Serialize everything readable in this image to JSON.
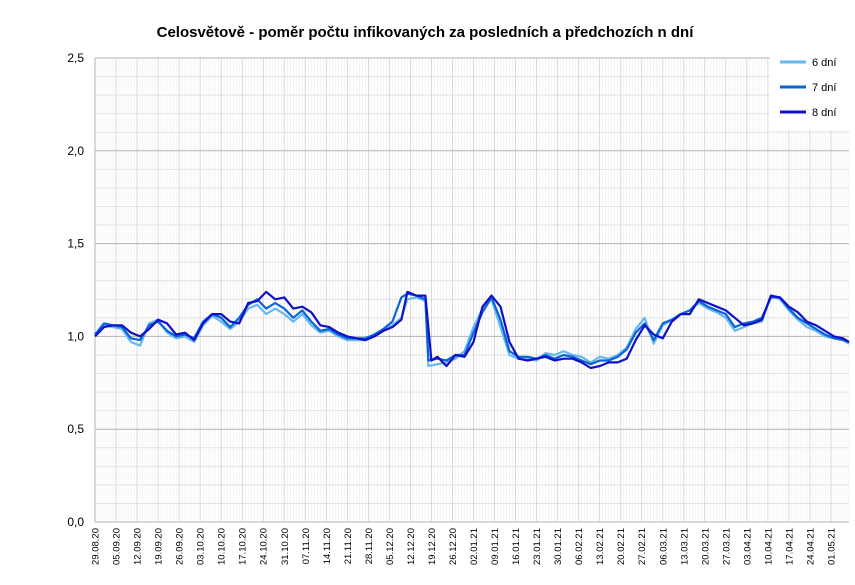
{
  "chart_data": {
    "type": "line",
    "title": "Celosvětově - poměr počtu infikovaných za posledních a předchozích n dní",
    "ylim": [
      0,
      2.5
    ],
    "yticks": [
      0,
      0.5,
      1.0,
      1.5,
      2.0,
      2.5
    ],
    "ytick_labels": [
      "0,0",
      "0,5",
      "1,0",
      "1,5",
      "2,0",
      "2,5"
    ],
    "xlim": [
      "2020-08-29",
      "2021-05-07"
    ],
    "x_tick_labels": [
      "29.08.20",
      "05.09.20",
      "12.09.20",
      "19.09.20",
      "26.09.20",
      "03.10.20",
      "10.10.20",
      "17.10.20",
      "24.10.20",
      "31.10.20",
      "07.11.20",
      "14.11.20",
      "21.11.20",
      "28.11.20",
      "05.12.20",
      "12.12.20",
      "19.12.20",
      "26.12.20",
      "02.01.21",
      "09.01.21",
      "16.01.21",
      "23.01.21",
      "30.01.21",
      "06.02.21",
      "13.02.21",
      "20.02.21",
      "27.02.21",
      "06.03.21",
      "13.03.21",
      "20.03.21",
      "27.03.21",
      "03.04.21",
      "10.04.21",
      "17.04.21",
      "24.04.21",
      "01.05.21"
    ],
    "grid": "major and minor",
    "legend_position": "top-right",
    "series": [
      {
        "name": "6 dní",
        "color": "#66b8ee",
        "x": [
          "2020-08-29",
          "2020-09-01",
          "2020-09-04",
          "2020-09-07",
          "2020-09-10",
          "2020-09-13",
          "2020-09-16",
          "2020-09-19",
          "2020-09-22",
          "2020-09-25",
          "2020-09-28",
          "2020-10-01",
          "2020-10-04",
          "2020-10-07",
          "2020-10-10",
          "2020-10-13",
          "2020-10-16",
          "2020-10-19",
          "2020-10-22",
          "2020-10-25",
          "2020-10-28",
          "2020-10-31",
          "2020-11-03",
          "2020-11-06",
          "2020-11-09",
          "2020-11-12",
          "2020-11-15",
          "2020-11-18",
          "2020-11-21",
          "2020-11-24",
          "2020-11-27",
          "2020-11-30",
          "2020-12-03",
          "2020-12-06",
          "2020-12-09",
          "2020-12-11",
          "2020-12-14",
          "2020-12-17",
          "2020-12-18",
          "2020-12-21",
          "2020-12-24",
          "2020-12-27",
          "2020-12-30",
          "2021-01-02",
          "2021-01-05",
          "2021-01-08",
          "2021-01-11",
          "2021-01-14",
          "2021-01-17",
          "2021-01-20",
          "2021-01-23",
          "2021-01-26",
          "2021-01-29",
          "2021-02-01",
          "2021-02-04",
          "2021-02-07",
          "2021-02-10",
          "2021-02-13",
          "2021-02-16",
          "2021-02-19",
          "2021-02-22",
          "2021-02-25",
          "2021-02-28",
          "2021-03-03",
          "2021-03-06",
          "2021-03-09",
          "2021-03-12",
          "2021-03-15",
          "2021-03-18",
          "2021-03-21",
          "2021-03-24",
          "2021-03-27",
          "2021-03-30",
          "2021-04-02",
          "2021-04-05",
          "2021-04-08",
          "2021-04-11",
          "2021-04-14",
          "2021-04-17",
          "2021-04-20",
          "2021-04-23",
          "2021-04-26",
          "2021-04-29",
          "2021-05-02",
          "2021-05-05",
          "2021-05-07"
        ],
        "values": [
          1.0,
          1.06,
          1.05,
          1.04,
          0.97,
          0.95,
          1.07,
          1.09,
          1.02,
          0.99,
          1.0,
          0.97,
          1.06,
          1.11,
          1.08,
          1.04,
          1.08,
          1.15,
          1.17,
          1.12,
          1.15,
          1.12,
          1.08,
          1.12,
          1.06,
          1.02,
          1.03,
          1.0,
          0.98,
          0.98,
          0.98,
          1.0,
          1.03,
          1.06,
          1.1,
          1.2,
          1.21,
          1.19,
          0.84,
          0.85,
          0.86,
          0.88,
          0.92,
          1.05,
          1.15,
          1.2,
          1.05,
          0.9,
          0.88,
          0.88,
          0.87,
          0.91,
          0.9,
          0.92,
          0.9,
          0.89,
          0.86,
          0.89,
          0.88,
          0.9,
          0.94,
          1.04,
          1.1,
          0.96,
          1.06,
          1.09,
          1.12,
          1.14,
          1.18,
          1.15,
          1.13,
          1.1,
          1.03,
          1.05,
          1.07,
          1.08,
          1.22,
          1.2,
          1.14,
          1.09,
          1.05,
          1.03,
          1.0,
          0.99,
          0.98,
          0.96
        ]
      },
      {
        "name": "7 dní",
        "color": "#0a64d8",
        "x": [
          "2020-08-29",
          "2020-09-01",
          "2020-09-04",
          "2020-09-07",
          "2020-09-10",
          "2020-09-13",
          "2020-09-16",
          "2020-09-19",
          "2020-09-22",
          "2020-09-25",
          "2020-09-28",
          "2020-10-01",
          "2020-10-04",
          "2020-10-07",
          "2020-10-10",
          "2020-10-13",
          "2020-10-16",
          "2020-10-19",
          "2020-10-22",
          "2020-10-25",
          "2020-10-28",
          "2020-10-31",
          "2020-11-03",
          "2020-11-06",
          "2020-11-09",
          "2020-11-12",
          "2020-11-15",
          "2020-11-18",
          "2020-11-21",
          "2020-11-24",
          "2020-11-27",
          "2020-11-30",
          "2020-12-03",
          "2020-12-06",
          "2020-12-09",
          "2020-12-11",
          "2020-12-14",
          "2020-12-17",
          "2020-12-18",
          "2020-12-21",
          "2020-12-24",
          "2020-12-27",
          "2020-12-30",
          "2021-01-02",
          "2021-01-05",
          "2021-01-08",
          "2021-01-11",
          "2021-01-14",
          "2021-01-17",
          "2021-01-20",
          "2021-01-23",
          "2021-01-26",
          "2021-01-29",
          "2021-02-01",
          "2021-02-04",
          "2021-02-07",
          "2021-02-10",
          "2021-02-13",
          "2021-02-16",
          "2021-02-19",
          "2021-02-22",
          "2021-02-25",
          "2021-02-28",
          "2021-03-03",
          "2021-03-06",
          "2021-03-09",
          "2021-03-12",
          "2021-03-15",
          "2021-03-18",
          "2021-03-21",
          "2021-03-24",
          "2021-03-27",
          "2021-03-30",
          "2021-04-02",
          "2021-04-05",
          "2021-04-08",
          "2021-04-11",
          "2021-04-14",
          "2021-04-17",
          "2021-04-20",
          "2021-04-23",
          "2021-04-26",
          "2021-04-29",
          "2021-05-02",
          "2021-05-05",
          "2021-05-07"
        ],
        "values": [
          1.01,
          1.07,
          1.06,
          1.05,
          0.99,
          0.98,
          1.06,
          1.08,
          1.03,
          1.0,
          1.01,
          0.99,
          1.08,
          1.12,
          1.1,
          1.05,
          1.1,
          1.17,
          1.2,
          1.15,
          1.18,
          1.15,
          1.1,
          1.14,
          1.08,
          1.03,
          1.04,
          1.01,
          0.99,
          0.99,
          0.99,
          1.01,
          1.04,
          1.08,
          1.21,
          1.23,
          1.22,
          1.2,
          0.87,
          0.88,
          0.87,
          0.9,
          0.9,
          1.02,
          1.13,
          1.21,
          1.09,
          0.92,
          0.89,
          0.89,
          0.88,
          0.9,
          0.88,
          0.9,
          0.89,
          0.87,
          0.85,
          0.87,
          0.87,
          0.89,
          0.93,
          1.02,
          1.07,
          0.98,
          1.07,
          1.09,
          1.12,
          1.14,
          1.19,
          1.16,
          1.14,
          1.12,
          1.05,
          1.07,
          1.08,
          1.1,
          1.21,
          1.21,
          1.15,
          1.1,
          1.07,
          1.04,
          1.01,
          0.99,
          0.98,
          0.97
        ]
      },
      {
        "name": "8 dní",
        "color": "#1010c8",
        "x": [
          "2020-08-29",
          "2020-09-01",
          "2020-09-04",
          "2020-09-07",
          "2020-09-10",
          "2020-09-13",
          "2020-09-16",
          "2020-09-19",
          "2020-09-22",
          "2020-09-25",
          "2020-09-28",
          "2020-10-01",
          "2020-10-04",
          "2020-10-07",
          "2020-10-10",
          "2020-10-13",
          "2020-10-16",
          "2020-10-19",
          "2020-10-22",
          "2020-10-25",
          "2020-10-28",
          "2020-10-31",
          "2020-11-03",
          "2020-11-06",
          "2020-11-09",
          "2020-11-12",
          "2020-11-15",
          "2020-11-18",
          "2020-11-21",
          "2020-11-24",
          "2020-11-27",
          "2020-11-30",
          "2020-12-03",
          "2020-12-06",
          "2020-12-09",
          "2020-12-11",
          "2020-12-14",
          "2020-12-17",
          "2020-12-19",
          "2020-12-21",
          "2020-12-24",
          "2020-12-27",
          "2020-12-30",
          "2021-01-02",
          "2021-01-05",
          "2021-01-08",
          "2021-01-11",
          "2021-01-14",
          "2021-01-17",
          "2021-01-20",
          "2021-01-23",
          "2021-01-26",
          "2021-01-29",
          "2021-02-01",
          "2021-02-04",
          "2021-02-07",
          "2021-02-10",
          "2021-02-13",
          "2021-02-16",
          "2021-02-19",
          "2021-02-22",
          "2021-02-25",
          "2021-02-28",
          "2021-03-03",
          "2021-03-06",
          "2021-03-09",
          "2021-03-12",
          "2021-03-15",
          "2021-03-18",
          "2021-03-21",
          "2021-03-24",
          "2021-03-27",
          "2021-03-30",
          "2021-04-02",
          "2021-04-05",
          "2021-04-08",
          "2021-04-11",
          "2021-04-14",
          "2021-04-17",
          "2021-04-20",
          "2021-04-23",
          "2021-04-26",
          "2021-04-29",
          "2021-05-02",
          "2021-05-05",
          "2021-05-07"
        ],
        "values": [
          1.0,
          1.05,
          1.06,
          1.06,
          1.02,
          1.0,
          1.04,
          1.09,
          1.07,
          1.01,
          1.02,
          0.98,
          1.07,
          1.12,
          1.12,
          1.08,
          1.07,
          1.18,
          1.19,
          1.24,
          1.2,
          1.21,
          1.15,
          1.16,
          1.13,
          1.06,
          1.05,
          1.02,
          1.0,
          0.99,
          0.98,
          1.0,
          1.03,
          1.05,
          1.09,
          1.24,
          1.22,
          1.22,
          0.87,
          0.89,
          0.84,
          0.9,
          0.89,
          0.97,
          1.16,
          1.22,
          1.16,
          0.97,
          0.88,
          0.87,
          0.88,
          0.89,
          0.87,
          0.88,
          0.88,
          0.86,
          0.83,
          0.84,
          0.86,
          0.86,
          0.88,
          0.98,
          1.06,
          1.01,
          0.99,
          1.08,
          1.12,
          1.12,
          1.2,
          1.18,
          1.16,
          1.14,
          1.1,
          1.06,
          1.07,
          1.09,
          1.22,
          1.21,
          1.16,
          1.13,
          1.08,
          1.06,
          1.03,
          1.0,
          0.99,
          0.97
        ]
      }
    ]
  }
}
